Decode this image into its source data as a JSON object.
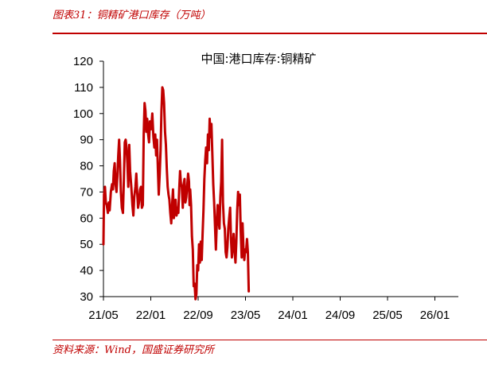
{
  "header": {
    "figure_title": "图表31：铜精矿港口库存（万吨）"
  },
  "footer": {
    "source": "资料来源：Wind，国盛证券研究所"
  },
  "colors": {
    "accent": "#c00000",
    "series": "#c00000"
  },
  "chart_data": {
    "type": "line",
    "title": "中国:港口库存:铜精矿",
    "xlabel": "",
    "ylabel": "",
    "ylim": [
      30,
      120
    ],
    "yticks": [
      30,
      40,
      50,
      60,
      70,
      80,
      90,
      100,
      110,
      120
    ],
    "xticks": [
      "21/05",
      "22/01",
      "22/09",
      "23/05",
      "24/01",
      "24/09",
      "25/05",
      "26/01"
    ],
    "grid": false,
    "legend": "none",
    "series": [
      {
        "values": [
          [
            0.0,
            50
          ],
          [
            0.1,
            69
          ],
          [
            0.25,
            72
          ],
          [
            0.4,
            66
          ],
          [
            0.55,
            65
          ],
          [
            0.75,
            62
          ],
          [
            0.9,
            66
          ],
          [
            1.05,
            63
          ],
          [
            1.25,
            70
          ],
          [
            1.45,
            73
          ],
          [
            1.6,
            71
          ],
          [
            1.75,
            78
          ],
          [
            1.9,
            81
          ],
          [
            2.05,
            73
          ],
          [
            2.2,
            70
          ],
          [
            2.35,
            76
          ],
          [
            2.5,
            84
          ],
          [
            2.65,
            90
          ],
          [
            2.8,
            82
          ],
          [
            2.95,
            70
          ],
          [
            3.1,
            64
          ],
          [
            3.3,
            62
          ],
          [
            3.45,
            75
          ],
          [
            3.6,
            89
          ],
          [
            3.75,
            90
          ],
          [
            3.9,
            87
          ],
          [
            4.05,
            81
          ],
          [
            4.2,
            72
          ],
          [
            4.35,
            88
          ],
          [
            4.5,
            78
          ],
          [
            4.7,
            72
          ],
          [
            4.9,
            65
          ],
          [
            5.05,
            61
          ],
          [
            5.2,
            68
          ],
          [
            5.4,
            72
          ],
          [
            5.55,
            77
          ],
          [
            5.7,
            70
          ],
          [
            5.85,
            64
          ],
          [
            6.0,
            66
          ],
          [
            6.2,
            71
          ],
          [
            6.35,
            72
          ],
          [
            6.5,
            64
          ],
          [
            6.65,
            65
          ],
          [
            6.8,
            92
          ],
          [
            6.95,
            104
          ],
          [
            7.1,
            101
          ],
          [
            7.25,
            93
          ],
          [
            7.4,
            98
          ],
          [
            7.55,
            92
          ],
          [
            7.7,
            89
          ],
          [
            7.85,
            97
          ],
          [
            8.05,
            94
          ],
          [
            8.25,
            100
          ],
          [
            8.45,
            91
          ],
          [
            8.6,
            87
          ],
          [
            8.75,
            92
          ],
          [
            8.9,
            84
          ],
          [
            9.05,
            90
          ],
          [
            9.2,
            79
          ],
          [
            9.35,
            69
          ],
          [
            9.5,
            77
          ],
          [
            9.65,
            86
          ],
          [
            9.8,
            101
          ],
          [
            9.95,
            110
          ],
          [
            10.1,
            109
          ],
          [
            10.25,
            104
          ],
          [
            10.4,
            93
          ],
          [
            10.55,
            88
          ],
          [
            10.7,
            79
          ],
          [
            10.85,
            72
          ],
          [
            11.0,
            69
          ],
          [
            11.15,
            67
          ],
          [
            11.3,
            62
          ],
          [
            11.45,
            58
          ],
          [
            11.6,
            65
          ],
          [
            11.75,
            71
          ],
          [
            11.9,
            60
          ],
          [
            12.05,
            63
          ],
          [
            12.2,
            67
          ],
          [
            12.35,
            61
          ],
          [
            12.5,
            64
          ],
          [
            12.65,
            62
          ],
          [
            12.8,
            71
          ],
          [
            12.95,
            78
          ],
          [
            13.1,
            73
          ],
          [
            13.25,
            72
          ],
          [
            13.4,
            64
          ],
          [
            13.55,
            73
          ],
          [
            13.7,
            75
          ],
          [
            13.85,
            66
          ],
          [
            14.0,
            68
          ],
          [
            14.15,
            72
          ],
          [
            14.3,
            77
          ],
          [
            14.45,
            74
          ],
          [
            14.55,
            65
          ],
          [
            14.65,
            71
          ],
          [
            14.8,
            65
          ],
          [
            14.95,
            53
          ],
          [
            15.1,
            48
          ],
          [
            15.25,
            34
          ],
          [
            15.4,
            35
          ],
          [
            15.55,
            29
          ],
          [
            15.7,
            31
          ],
          [
            15.85,
            42
          ],
          [
            16.0,
            40
          ],
          [
            16.15,
            50
          ],
          [
            16.3,
            43
          ],
          [
            16.45,
            51
          ],
          [
            16.6,
            44
          ],
          [
            16.75,
            54
          ],
          [
            16.9,
            63
          ],
          [
            17.05,
            75
          ],
          [
            17.2,
            82
          ],
          [
            17.35,
            87
          ],
          [
            17.5,
            81
          ],
          [
            17.65,
            92
          ],
          [
            17.8,
            86
          ],
          [
            17.95,
            98
          ],
          [
            18.1,
            91
          ],
          [
            18.25,
            96
          ],
          [
            18.4,
            84
          ],
          [
            18.55,
            73
          ],
          [
            18.7,
            66
          ],
          [
            18.85,
            57
          ],
          [
            19.0,
            48
          ],
          [
            19.15,
            58
          ],
          [
            19.3,
            65
          ],
          [
            19.45,
            59
          ],
          [
            19.6,
            56
          ],
          [
            19.75,
            68
          ],
          [
            19.9,
            74
          ],
          [
            20.05,
            90
          ],
          [
            20.2,
            66
          ],
          [
            20.35,
            58
          ],
          [
            20.5,
            56
          ],
          [
            20.65,
            47
          ],
          [
            20.8,
            45
          ],
          [
            20.95,
            49
          ],
          [
            21.1,
            56
          ],
          [
            21.25,
            60
          ],
          [
            21.4,
            64
          ],
          [
            21.55,
            52
          ],
          [
            21.7,
            45
          ],
          [
            21.85,
            49
          ],
          [
            22.0,
            54
          ],
          [
            22.15,
            48
          ],
          [
            22.3,
            43
          ],
          [
            22.45,
            51
          ],
          [
            22.6,
            63
          ],
          [
            22.75,
            70
          ],
          [
            22.9,
            65
          ],
          [
            23.05,
            69
          ],
          [
            23.2,
            55
          ],
          [
            23.35,
            45
          ],
          [
            23.5,
            58
          ],
          [
            23.65,
            49
          ],
          [
            23.8,
            44
          ],
          [
            23.95,
            48
          ],
          [
            24.1,
            47
          ],
          [
            24.25,
            52
          ],
          [
            24.4,
            47
          ],
          [
            24.55,
            32
          ]
        ]
      }
    ]
  }
}
